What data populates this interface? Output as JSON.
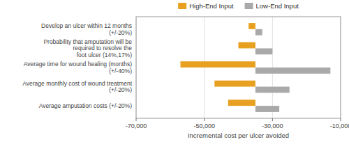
{
  "chart_data": {
    "type": "bar",
    "orientation": "horizontal",
    "categories": [
      "Average amputation costs (+/-20%)",
      "Average monthly cost of wound treatment (+/-20%)",
      "Average time for wound healing (months) (+/-40%)",
      "Probability that amputation will be required to resolve the\nfoot ulcer (14%,17%)",
      "Develop an ulcer within 12 months (+/-20%)"
    ],
    "series": [
      {
        "name": "High-End Input",
        "color": "#E8A020",
        "left": [
          -43000,
          -47000,
          -57000,
          -40000,
          -37000
        ],
        "right": [
          -35000,
          -35000,
          -35000,
          -35000,
          -35000
        ]
      },
      {
        "name": "Low-End Input",
        "color": "#A9A9A9",
        "left": [
          -35000,
          -35000,
          -35000,
          -35000,
          -35000
        ],
        "right": [
          -28000,
          -25000,
          -13000,
          -30000,
          -33000
        ]
      }
    ],
    "xlabel": "Incremental cost per ulcer avoided",
    "xlim": [
      -70000,
      -10000
    ],
    "xticks": [
      {
        "value": -70000,
        "label": "-70,000"
      },
      {
        "value": -50000,
        "label": "-50,000"
      },
      {
        "value": -30000,
        "label": "-30,000"
      },
      {
        "value": -10000,
        "label": "-10,000"
      }
    ],
    "grid": true,
    "legend": "top"
  }
}
